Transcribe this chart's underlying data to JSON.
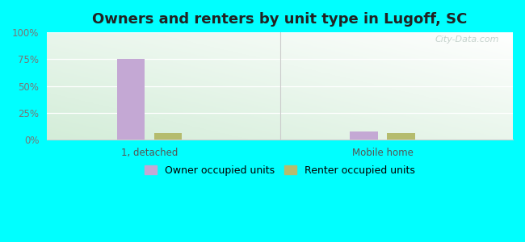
{
  "title": "Owners and renters by unit type in Lugoff, SC",
  "categories": [
    "1, detached",
    "Mobile home"
  ],
  "owner_values": [
    75,
    8
  ],
  "renter_values": [
    6,
    6
  ],
  "owner_color": "#c4a8d4",
  "renter_color": "#b5bc6e",
  "ylim": [
    0,
    100
  ],
  "yticks": [
    0,
    25,
    50,
    75,
    100
  ],
  "ytick_labels": [
    "0%",
    "25%",
    "50%",
    "75%",
    "100%"
  ],
  "outer_background": "#00ffff",
  "bar_width": 0.06,
  "group_positions": [
    0.22,
    0.72
  ],
  "bar_gap": 0.08,
  "legend_owner": "Owner occupied units",
  "legend_renter": "Renter occupied units",
  "watermark": "City-Data.com",
  "title_fontsize": 13,
  "tick_fontsize": 8.5,
  "legend_fontsize": 9,
  "ytick_color": "#777777",
  "xtick_color": "#555555"
}
